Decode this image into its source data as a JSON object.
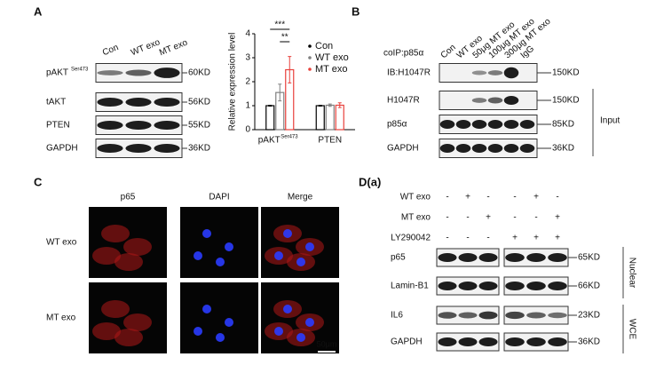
{
  "panel_a": {
    "label": "A",
    "lanes": [
      "Con",
      "WT exo",
      "MT exo"
    ],
    "rows": [
      {
        "name": "pAKT",
        "superscript": "Ser473",
        "size": "60KD"
      },
      {
        "name": "tAKT",
        "size": "56KD"
      },
      {
        "name": "PTEN",
        "size": "55KD"
      },
      {
        "name": "GAPDH",
        "size": "36KD"
      }
    ]
  },
  "chart_data": {
    "type": "bar",
    "ylabel": "Relative expression level",
    "categories": [
      "pAKT",
      "PTEN"
    ],
    "category_superscripts": [
      "Ser473",
      null
    ],
    "series": [
      {
        "name": "Con",
        "color": "#000000",
        "values": [
          1,
          1
        ],
        "errors": [
          0.02,
          0.02
        ]
      },
      {
        "name": "WT exo",
        "color": "#808080",
        "values": [
          1.55,
          1.02
        ],
        "errors": [
          0.35,
          0.05
        ]
      },
      {
        "name": "MT exo",
        "color": "#e8413c",
        "values": [
          2.5,
          1.02
        ],
        "errors": [
          0.55,
          0.1
        ]
      }
    ],
    "annotations": [
      "***",
      "**"
    ],
    "ylim": [
      0,
      4
    ],
    "yticks": [
      0,
      1,
      2,
      3,
      4
    ]
  },
  "panel_b": {
    "label": "B",
    "coip": "coIP:p85α",
    "lanes": [
      "Con",
      "WT exo",
      "50μg MT exo",
      "100μg MT exo",
      "300μg MT exo",
      "IgG"
    ],
    "rows": [
      {
        "name": "IB:H1047R",
        "size": "150KD"
      },
      {
        "name": "H1047R",
        "size": "150KD"
      },
      {
        "name": "p85α",
        "size": "85KD"
      },
      {
        "name": "GAPDH",
        "size": "36KD"
      }
    ],
    "group": "Input"
  },
  "panel_c": {
    "label": "C",
    "columns": [
      "p65",
      "DAPI",
      "Merge"
    ],
    "rows": [
      "WT exo",
      "MT exo"
    ],
    "scale": "50μm"
  },
  "panel_d": {
    "label": "D(a)",
    "treatments": [
      {
        "name": "WT exo",
        "signs": [
          "-",
          "+",
          "-",
          "-",
          "+",
          "-"
        ]
      },
      {
        "name": "MT exo",
        "signs": [
          "-",
          "-",
          "+",
          "-",
          "-",
          "+"
        ]
      },
      {
        "name": "LY290042",
        "signs": [
          "-",
          "-",
          "-",
          "+",
          "+",
          "+"
        ]
      }
    ],
    "rows": [
      {
        "name": "p65",
        "size": "65KD"
      },
      {
        "name": "Lamin-B1",
        "size": "66KD"
      },
      {
        "name": "IL6",
        "size": "23KD"
      },
      {
        "name": "GAPDH",
        "size": "36KD"
      }
    ],
    "groups": [
      "Nuclear",
      "WCE"
    ]
  }
}
